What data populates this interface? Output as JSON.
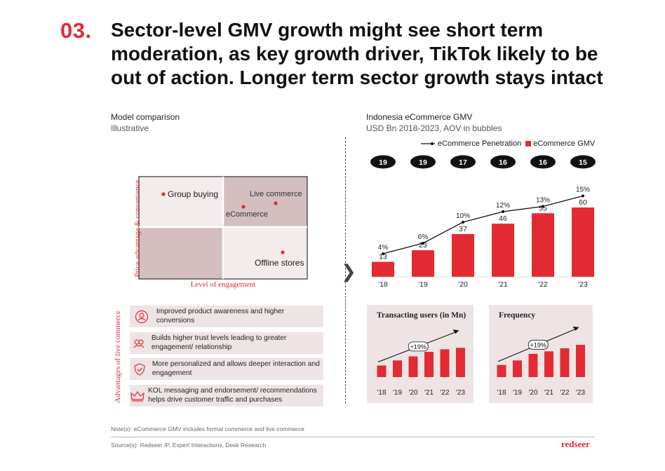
{
  "header": {
    "number": "03.",
    "title": "Sector-level GMV growth might see short term moderation, as key growth driver, TikTok likely to be out of action. Longer term sector growth stays intact"
  },
  "left": {
    "section_title": "Model comparison",
    "section_sub": "Illustrative",
    "matrix": {
      "y_label": "Price advantage & convenience",
      "x_label": "Level of engagement",
      "items": [
        "Group buying",
        "Live commerce",
        "eCommerce",
        "Offline stores"
      ]
    },
    "advantages": {
      "side_label": "Advantages of live commerce",
      "rows": [
        {
          "icon": "awareness-icon",
          "text": "Improved product awareness and higher conversions"
        },
        {
          "icon": "trust-icon",
          "text": "Builds higher trust levels leading to greater engagement/ relationship"
        },
        {
          "icon": "shield-check-icon",
          "text": "More personalized and allows deeper interaction and engagement"
        },
        {
          "icon": "crown-icon",
          "text": "KOL messaging and endorsement/ recommendations helps drive customer traffic and purchases"
        }
      ]
    }
  },
  "right": {
    "section_title": "Indonesia eCommerce GMV",
    "section_sub": "USD Bn 2018-2023, AOV in bubbles",
    "legend": {
      "line": "eCommerce Penetration",
      "bar": "eCommerce GMV"
    }
  },
  "colors": {
    "accent": "#e32b33",
    "pink": "#efe4e5",
    "mauve": "#d4bec0"
  },
  "chart_data": [
    {
      "type": "bar",
      "categories": [
        "'18",
        "'19",
        "'20",
        "'21",
        "'22",
        "'23"
      ],
      "series": [
        {
          "name": "eCommerce GMV",
          "values": [
            13,
            23,
            37,
            46,
            55,
            60
          ]
        },
        {
          "name": "eCommerce Penetration",
          "type": "line",
          "values": [
            4,
            6,
            10,
            12,
            13,
            15
          ],
          "labels": [
            "4%",
            "6%",
            "10%",
            "12%",
            "13%",
            "15%"
          ]
        }
      ],
      "bubbles": [
        19,
        19,
        17,
        16,
        16,
        15
      ],
      "legend_position": "top-right"
    },
    {
      "type": "bar",
      "title": "Transacting users (in Mn)",
      "categories": [
        "'18",
        "'19",
        "'20",
        "'21",
        "'22",
        "'23"
      ],
      "values": [
        23,
        33,
        41,
        50,
        55,
        58
      ],
      "annotation": "+19%"
    },
    {
      "type": "bar",
      "title": "Frequency",
      "categories": [
        "'18",
        "'19",
        "'20",
        "'21",
        "'22",
        "'23"
      ],
      "values": [
        24,
        33,
        46,
        51,
        57,
        64
      ],
      "annotation": "+19%"
    }
  ],
  "footer": {
    "note": "Note(s): eCommerce GMV includes formal commerce and live commerce",
    "source": "Source(s): Redseer IP, Expert Interactions, Desk Research",
    "brand": "redseer"
  }
}
